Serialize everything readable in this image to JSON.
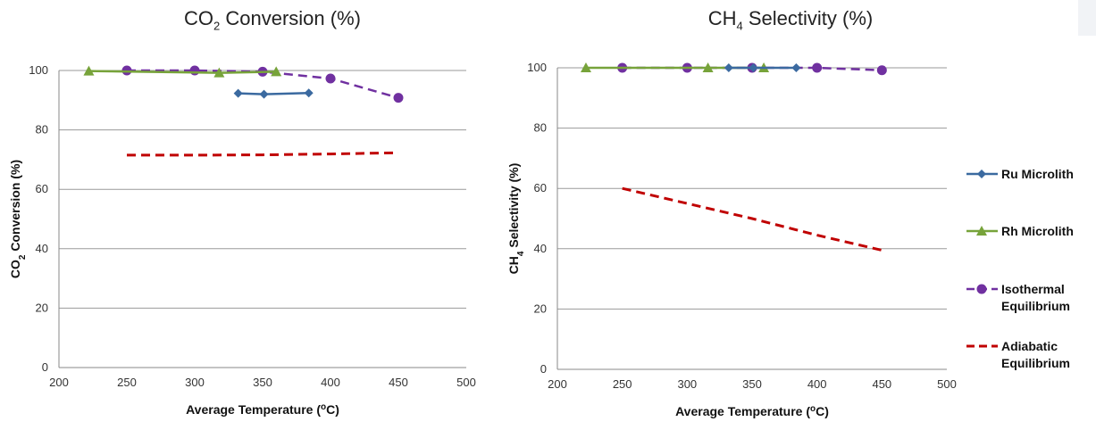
{
  "chart_data": [
    {
      "type": "line",
      "title_main": "CO",
      "title_sub": "2",
      "title_rest": " Conversion (%)",
      "xlabel_main": "Average Temperature (",
      "xlabel_sup": "o",
      "xlabel_rest": "C)",
      "ylabel_main": "CO",
      "ylabel_sub": "2",
      "ylabel_rest": " Conversion (%)",
      "xlim": [
        200,
        500
      ],
      "ylim": [
        0,
        100
      ],
      "x_ticks": [
        200,
        250,
        300,
        350,
        400,
        450,
        500
      ],
      "y_ticks": [
        0,
        20,
        40,
        60,
        80,
        100
      ],
      "grid": "horizontal",
      "series": [
        {
          "key": "ru",
          "x": [
            332,
            351,
            384
          ],
          "y": [
            92.3,
            92.0,
            92.4
          ]
        },
        {
          "key": "rh",
          "x": [
            222,
            318,
            360
          ],
          "y": [
            99.8,
            99.2,
            99.6
          ]
        },
        {
          "key": "iso",
          "x": [
            250,
            300,
            350,
            400,
            450
          ],
          "y": [
            100,
            100,
            99.6,
            97.3,
            90.8
          ]
        },
        {
          "key": "adi",
          "x": [
            250,
            300,
            350,
            400,
            450
          ],
          "y": [
            71.5,
            71.5,
            71.6,
            71.9,
            72.3
          ]
        }
      ]
    },
    {
      "type": "line",
      "title_main": "CH",
      "title_sub": "4",
      "title_rest": " Selectivity (%)",
      "xlabel_main": "Average Temperature (",
      "xlabel_sup": "o",
      "xlabel_rest": "C)",
      "ylabel_main": "CH",
      "ylabel_sub": "4",
      "ylabel_rest": " Selectivity (%)",
      "xlim": [
        200,
        500
      ],
      "ylim": [
        0,
        100
      ],
      "x_ticks": [
        200,
        250,
        300,
        350,
        400,
        450,
        500
      ],
      "y_ticks": [
        0,
        20,
        40,
        60,
        80,
        100
      ],
      "grid": "horizontal",
      "series": [
        {
          "key": "ru",
          "x": [
            332,
            351,
            384
          ],
          "y": [
            100,
            100,
            100
          ]
        },
        {
          "key": "rh",
          "x": [
            222,
            316,
            359
          ],
          "y": [
            100,
            100,
            100
          ]
        },
        {
          "key": "iso",
          "x": [
            250,
            300,
            350,
            400,
            450
          ],
          "y": [
            100,
            100,
            100,
            100,
            99.2
          ]
        },
        {
          "key": "adi",
          "x": [
            250,
            300,
            350,
            400,
            450
          ],
          "y": [
            60,
            55,
            50,
            44.5,
            39.5
          ]
        }
      ]
    }
  ],
  "legend": {
    "placement": "right",
    "items": [
      {
        "key": "ru",
        "line1": "Ru Microlith",
        "line2": "",
        "color": "#3b6aa0",
        "marker": "diamond",
        "dash": "solid"
      },
      {
        "key": "rh",
        "line1": "Rh Microlith",
        "line2": "",
        "color": "#77a33a",
        "marker": "triangle",
        "dash": "solid"
      },
      {
        "key": "iso",
        "line1": "Isothermal",
        "line2": "Equilibrium",
        "color": "#7030a0",
        "marker": "circle",
        "dash": "dash"
      },
      {
        "key": "adi",
        "line1": "Adiabatic",
        "line2": "Equilibrium",
        "color": "#c00000",
        "marker": "none",
        "dash": "dash"
      }
    ]
  }
}
